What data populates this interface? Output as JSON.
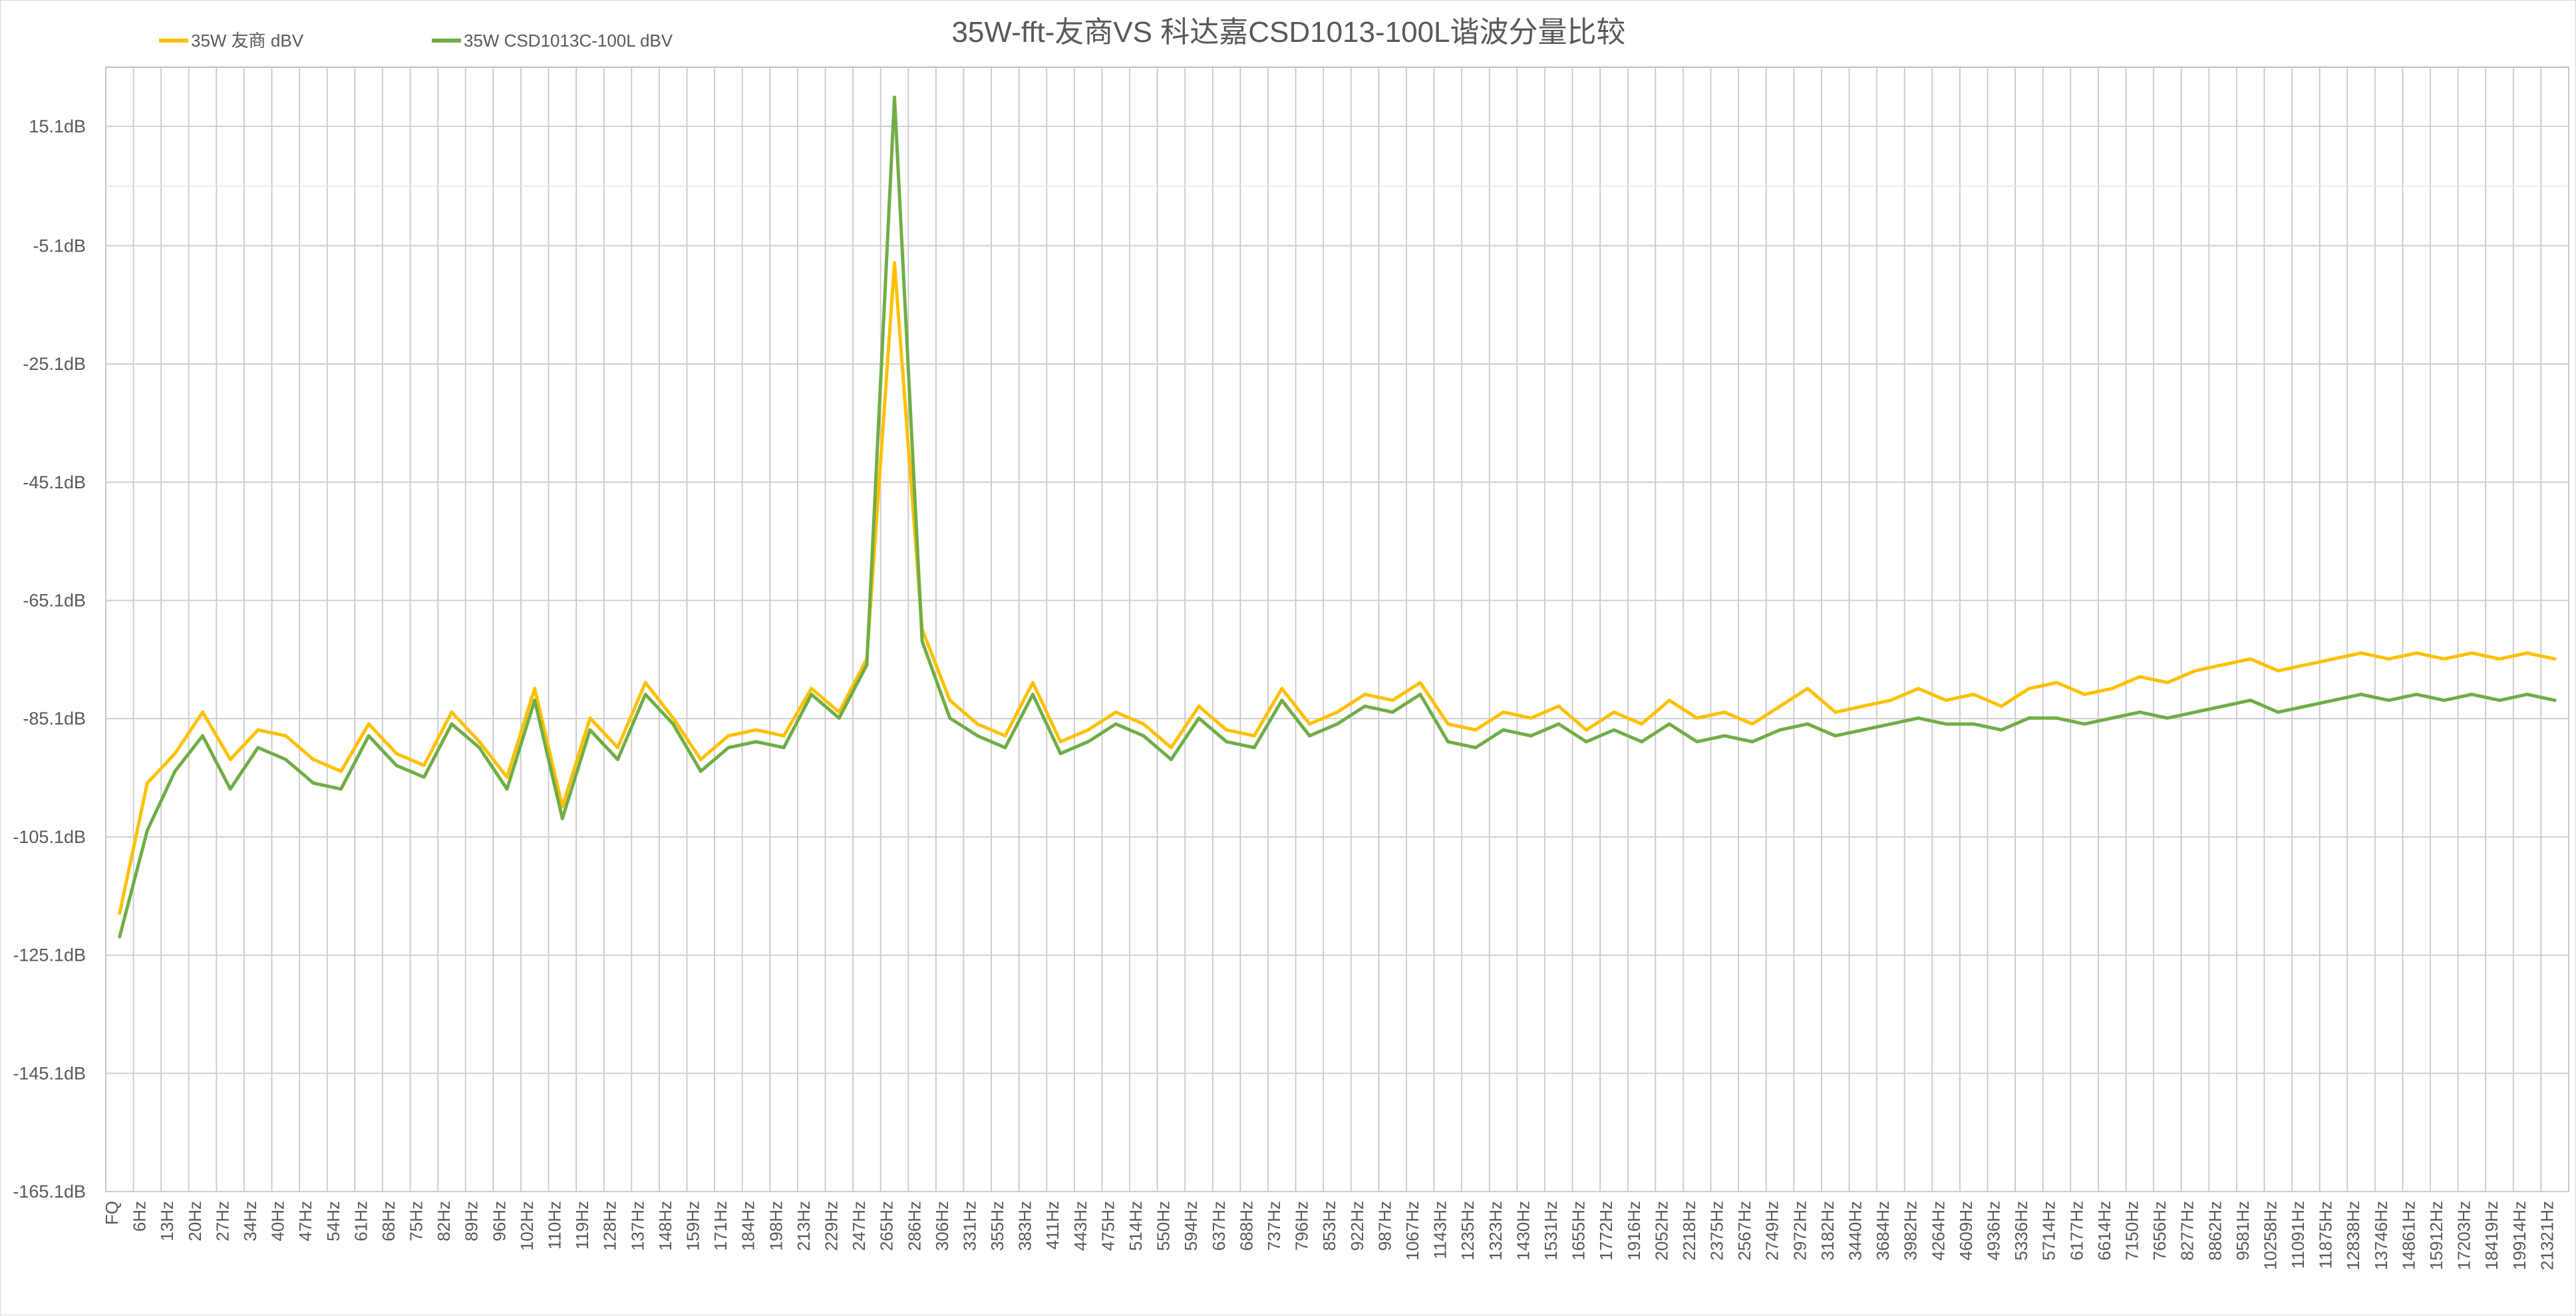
{
  "chart_data": {
    "type": "line",
    "title": "35W-fft-友商VS 科达嘉CSD1013-100L谐波分量比较",
    "xlabel": "",
    "ylabel": "",
    "ylim": [
      -165.1,
      25.1
    ],
    "y_ticks": [
      "15.1dB",
      "-5.1dB",
      "-25.1dB",
      "-45.1dB",
      "-65.1dB",
      "-85.1dB",
      "-105.1dB",
      "-125.1dB",
      "-145.1dB",
      "-165.1dB"
    ],
    "y_tick_values": [
      15.1,
      -5.1,
      -25.1,
      -45.1,
      -65.1,
      -85.1,
      -105.1,
      -125.1,
      -145.1,
      -165.1
    ],
    "grid": "on",
    "legend_position": "top-left",
    "x_tick_labels": [
      "FQ",
      "6Hz",
      "13Hz",
      "20Hz",
      "27Hz",
      "34Hz",
      "40Hz",
      "47Hz",
      "54Hz",
      "61Hz",
      "68Hz",
      "75Hz",
      "82Hz",
      "89Hz",
      "96Hz",
      "102Hz",
      "110Hz",
      "119Hz",
      "128Hz",
      "137Hz",
      "148Hz",
      "159Hz",
      "171Hz",
      "184Hz",
      "198Hz",
      "213Hz",
      "229Hz",
      "247Hz",
      "265Hz",
      "286Hz",
      "306Hz",
      "331Hz",
      "355Hz",
      "383Hz",
      "411Hz",
      "443Hz",
      "475Hz",
      "514Hz",
      "550Hz",
      "594Hz",
      "637Hz",
      "688Hz",
      "737Hz",
      "796Hz",
      "853Hz",
      "922Hz",
      "987Hz",
      "1067Hz",
      "1143Hz",
      "1235Hz",
      "1323Hz",
      "1430Hz",
      "1531Hz",
      "1655Hz",
      "1772Hz",
      "1916Hz",
      "2052Hz",
      "2218Hz",
      "2375Hz",
      "2567Hz",
      "2749Hz",
      "2972Hz",
      "3182Hz",
      "3440Hz",
      "3684Hz",
      "3982Hz",
      "4264Hz",
      "4609Hz",
      "4936Hz",
      "5336Hz",
      "5714Hz",
      "6177Hz",
      "6614Hz",
      "7150Hz",
      "7656Hz",
      "8277Hz",
      "8862Hz",
      "9581Hz",
      "10258Hz",
      "11091Hz",
      "11875Hz",
      "12838Hz",
      "13746Hz",
      "14861Hz",
      "15912Hz",
      "17203Hz",
      "18419Hz",
      "19914Hz",
      "21321Hz"
    ],
    "series": [
      {
        "name": "35W 友商 dBV",
        "color": "#FFC000",
        "values": [
          -118.0,
          -96.0,
          -91.0,
          -84.0,
          -92.0,
          -87.0,
          -88.0,
          -92.0,
          -94.0,
          -86.0,
          -91.0,
          -93.0,
          -84.0,
          -89.0,
          -95.0,
          -80.0,
          -100.0,
          -85.0,
          -90.0,
          -79.0,
          -85.0,
          -92.0,
          -88.0,
          -87.0,
          -88.0,
          -80.0,
          -84.0,
          -75.0,
          -8.0,
          -70.0,
          -82.0,
          -86.0,
          -88.0,
          -79.0,
          -89.0,
          -87.0,
          -84.0,
          -86.0,
          -90.0,
          -83.0,
          -87.0,
          -88.0,
          -80.0,
          -86.0,
          -84.0,
          -81.0,
          -82.0,
          -79.0,
          -86.0,
          -87.0,
          -84.0,
          -85.0,
          -83.0,
          -87.0,
          -84.0,
          -86.0,
          -82.0,
          -85.0,
          -84.0,
          -86.0,
          -83.0,
          -80.0,
          -84.0,
          -83.0,
          -82.0,
          -80.0,
          -82.0,
          -81.0,
          -83.0,
          -80.0,
          -79.0,
          -81.0,
          -80.0,
          -78.0,
          -79.0,
          -77.0,
          -76.0,
          -75.0,
          -77.0,
          -76.0,
          -75.0,
          -74.0,
          -75.0,
          -74.0,
          -75.0,
          -74.0,
          -75.0,
          -74.0,
          -75.0
        ]
      },
      {
        "name": "35W CSD1013C-100L dBV",
        "color": "#70AD47",
        "values": [
          -122.0,
          -104.0,
          -94.0,
          -88.0,
          -97.0,
          -90.0,
          -92.0,
          -96.0,
          -97.0,
          -88.0,
          -93.0,
          -95.0,
          -86.0,
          -90.0,
          -97.0,
          -82.0,
          -102.0,
          -87.0,
          -92.0,
          -81.0,
          -86.0,
          -94.0,
          -90.0,
          -89.0,
          -90.0,
          -81.0,
          -85.0,
          -76.0,
          20.0,
          -72.0,
          -85.0,
          -88.0,
          -90.0,
          -81.0,
          -91.0,
          -89.0,
          -86.0,
          -88.0,
          -92.0,
          -85.0,
          -89.0,
          -90.0,
          -82.0,
          -88.0,
          -86.0,
          -83.0,
          -84.0,
          -81.0,
          -89.0,
          -90.0,
          -87.0,
          -88.0,
          -86.0,
          -89.0,
          -87.0,
          -89.0,
          -86.0,
          -89.0,
          -88.0,
          -89.0,
          -87.0,
          -86.0,
          -88.0,
          -87.0,
          -86.0,
          -85.0,
          -86.0,
          -86.0,
          -87.0,
          -85.0,
          -85.0,
          -86.0,
          -85.0,
          -84.0,
          -85.0,
          -84.0,
          -83.0,
          -82.0,
          -84.0,
          -83.0,
          -82.0,
          -81.0,
          -82.0,
          -81.0,
          -82.0,
          -81.0,
          -82.0,
          -81.0,
          -82.0
        ]
      }
    ]
  }
}
